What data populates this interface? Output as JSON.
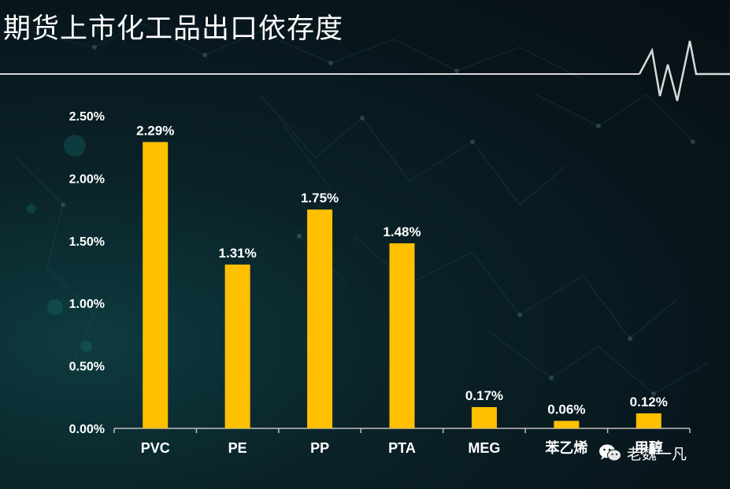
{
  "title": "期货上市化工品出口依存度",
  "watermark": "老魏一凡",
  "colors": {
    "bar": "#FFC000",
    "text": "#FFFFFF",
    "axis": "#BFBFBF",
    "rule": "#D9D9D9"
  },
  "chart_data": {
    "type": "bar",
    "title": "",
    "xlabel": "",
    "ylabel": "",
    "categories": [
      "PVC",
      "PE",
      "PP",
      "PTA",
      "MEG",
      "苯乙烯",
      "甲醇"
    ],
    "values": [
      2.29,
      1.31,
      1.75,
      1.48,
      0.17,
      0.06,
      0.12
    ],
    "value_labels": [
      "2.29%",
      "1.31%",
      "1.75%",
      "1.48%",
      "0.17%",
      "0.06%",
      "0.12%"
    ],
    "y_ticks": [
      0,
      0.5,
      1.0,
      1.5,
      2.0,
      2.5
    ],
    "y_tick_labels": [
      "0.00%",
      "0.50%",
      "1.00%",
      "1.50%",
      "2.00%",
      "2.50%"
    ],
    "ylim": [
      0,
      2.5
    ],
    "unit": "%",
    "grid": false,
    "legend": "none"
  }
}
